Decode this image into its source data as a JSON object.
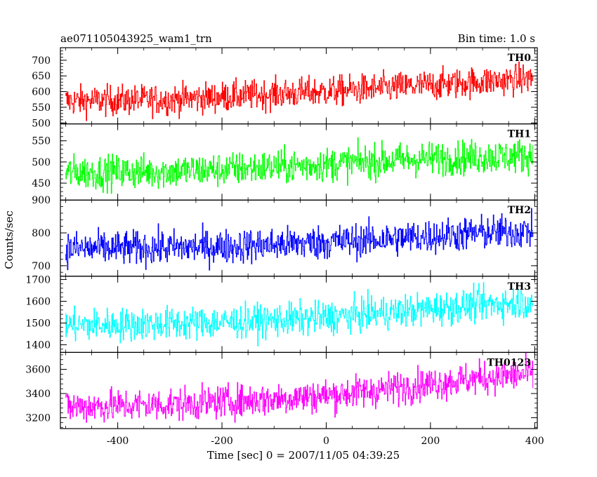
{
  "chart_data": {
    "type": "line",
    "title": "ae071105043925_wam1_trn",
    "subtitle": "Bin time: 1.0 s",
    "xlabel": "Time [sec] 0 = 2007/11/05 04:39:25",
    "ylabel": "Counts/sec",
    "xlim": [
      -510,
      405
    ],
    "x_ticks": [
      -400,
      -200,
      0,
      200,
      400
    ],
    "grid": false,
    "x": {
      "start": -500,
      "end": 397,
      "step": 1
    },
    "series": [
      {
        "name": "TH0",
        "color": "#ff0000",
        "ylim": [
          497,
          740
        ],
        "y_ticks": [
          500,
          550,
          600,
          650,
          700
        ],
        "trend": [
          {
            "t": -500,
            "mean": 570
          },
          {
            "t": -400,
            "mean": 572
          },
          {
            "t": -300,
            "mean": 575
          },
          {
            "t": -200,
            "mean": 583
          },
          {
            "t": -100,
            "mean": 592
          },
          {
            "t": 0,
            "mean": 600
          },
          {
            "t": 100,
            "mean": 610
          },
          {
            "t": 200,
            "mean": 620
          },
          {
            "t": 300,
            "mean": 632
          },
          {
            "t": 397,
            "mean": 642
          }
        ],
        "noise_sd": 24
      },
      {
        "name": "TH1",
        "color": "#00ff00",
        "ylim": [
          410,
          590
        ],
        "y_ticks": [
          450,
          500,
          550
        ],
        "trend": [
          {
            "t": -500,
            "mean": 475
          },
          {
            "t": -400,
            "mean": 476
          },
          {
            "t": -300,
            "mean": 478
          },
          {
            "t": -200,
            "mean": 482
          },
          {
            "t": -100,
            "mean": 488
          },
          {
            "t": 0,
            "mean": 494
          },
          {
            "t": 100,
            "mean": 502
          },
          {
            "t": 200,
            "mean": 508
          },
          {
            "t": 300,
            "mean": 512
          },
          {
            "t": 397,
            "mean": 515
          }
        ],
        "noise_sd": 20
      },
      {
        "name": "TH2",
        "color": "#0000ff",
        "ylim": [
          668,
          900
        ],
        "y_ticks": [
          700,
          800,
          900
        ],
        "trend": [
          {
            "t": -500,
            "mean": 752
          },
          {
            "t": -400,
            "mean": 753
          },
          {
            "t": -300,
            "mean": 755
          },
          {
            "t": -200,
            "mean": 758
          },
          {
            "t": -100,
            "mean": 764
          },
          {
            "t": 0,
            "mean": 772
          },
          {
            "t": 100,
            "mean": 780
          },
          {
            "t": 200,
            "mean": 790
          },
          {
            "t": 300,
            "mean": 800
          },
          {
            "t": 397,
            "mean": 806
          }
        ],
        "noise_sd": 26
      },
      {
        "name": "TH3",
        "color": "#00ffff",
        "ylim": [
          1365,
          1715
        ],
        "y_ticks": [
          1400,
          1500,
          1600,
          1700
        ],
        "trend": [
          {
            "t": -500,
            "mean": 1490
          },
          {
            "t": -400,
            "mean": 1492
          },
          {
            "t": -300,
            "mean": 1497
          },
          {
            "t": -200,
            "mean": 1503
          },
          {
            "t": -100,
            "mean": 1512
          },
          {
            "t": 0,
            "mean": 1525
          },
          {
            "t": 100,
            "mean": 1545
          },
          {
            "t": 200,
            "mean": 1565
          },
          {
            "t": 300,
            "mean": 1585
          },
          {
            "t": 397,
            "mean": 1598
          }
        ],
        "noise_sd": 38
      },
      {
        "name": "TH0123",
        "color": "#ff00ff",
        "ylim": [
          3110,
          3740
        ],
        "y_ticks": [
          3200,
          3400,
          3600
        ],
        "trend": [
          {
            "t": -500,
            "mean": 3290
          },
          {
            "t": -400,
            "mean": 3300
          },
          {
            "t": -300,
            "mean": 3310
          },
          {
            "t": -200,
            "mean": 3330
          },
          {
            "t": -100,
            "mean": 3355
          },
          {
            "t": 0,
            "mean": 3385
          },
          {
            "t": 100,
            "mean": 3430
          },
          {
            "t": 200,
            "mean": 3480
          },
          {
            "t": 300,
            "mean": 3530
          },
          {
            "t": 397,
            "mean": 3565
          }
        ],
        "noise_sd": 68
      }
    ]
  }
}
